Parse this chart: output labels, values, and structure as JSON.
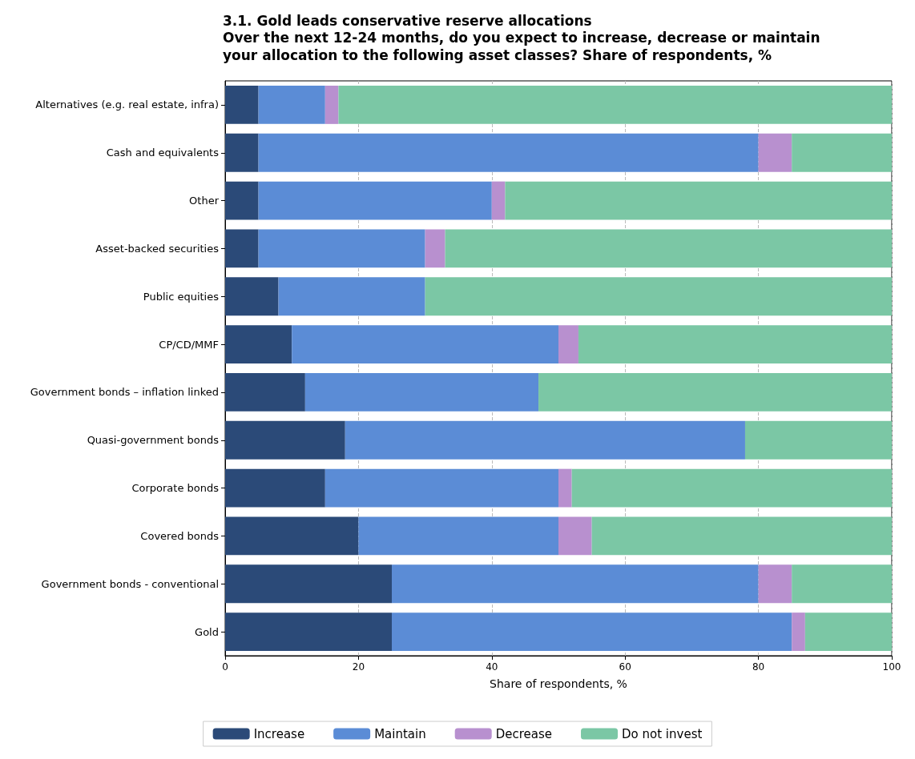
{
  "chart_data": {
    "type": "bar",
    "orientation": "horizontal",
    "stacked": true,
    "title": "3.1. Gold leads conservative reserve allocations",
    "subtitle": "Over the next 12-24 months, do you expect to increase, decrease or maintain\nyour allocation to the following asset classes? Share of respondents, %",
    "xlabel": "Share of respondents, %",
    "categories": [
      "Alternatives (e.g. real estate, infra)",
      "Cash and equivalents",
      "Other",
      "Asset-backed securities",
      "Public equities",
      "CP/CD/MMF",
      "Government bonds – inflation linked",
      "Quasi-government bonds",
      "Corporate bonds",
      "Covered bonds",
      "Government bonds - conventional",
      "Gold"
    ],
    "series": [
      {
        "name": "Increase",
        "color": "#2b4a78",
        "values": [
          5,
          5,
          5,
          5,
          8,
          10,
          12,
          18,
          15,
          20,
          25,
          25
        ]
      },
      {
        "name": "Maintain",
        "color": "#5b8cd6",
        "values": [
          10,
          75,
          35,
          25,
          22,
          40,
          35,
          60,
          35,
          30,
          55,
          60
        ]
      },
      {
        "name": "Decrease",
        "color": "#b890cf",
        "values": [
          2,
          5,
          2,
          3,
          0,
          3,
          0,
          0,
          2,
          5,
          5,
          2
        ]
      },
      {
        "name": "Do not invest",
        "color": "#7bc7a5",
        "values": [
          83,
          15,
          58,
          67,
          70,
          47,
          53,
          22,
          48,
          45,
          15,
          13
        ]
      }
    ],
    "xlim": [
      0,
      100
    ],
    "xticks": [
      0,
      20,
      40,
      60,
      80,
      100
    ],
    "grid": "x",
    "legend": "bottom"
  }
}
